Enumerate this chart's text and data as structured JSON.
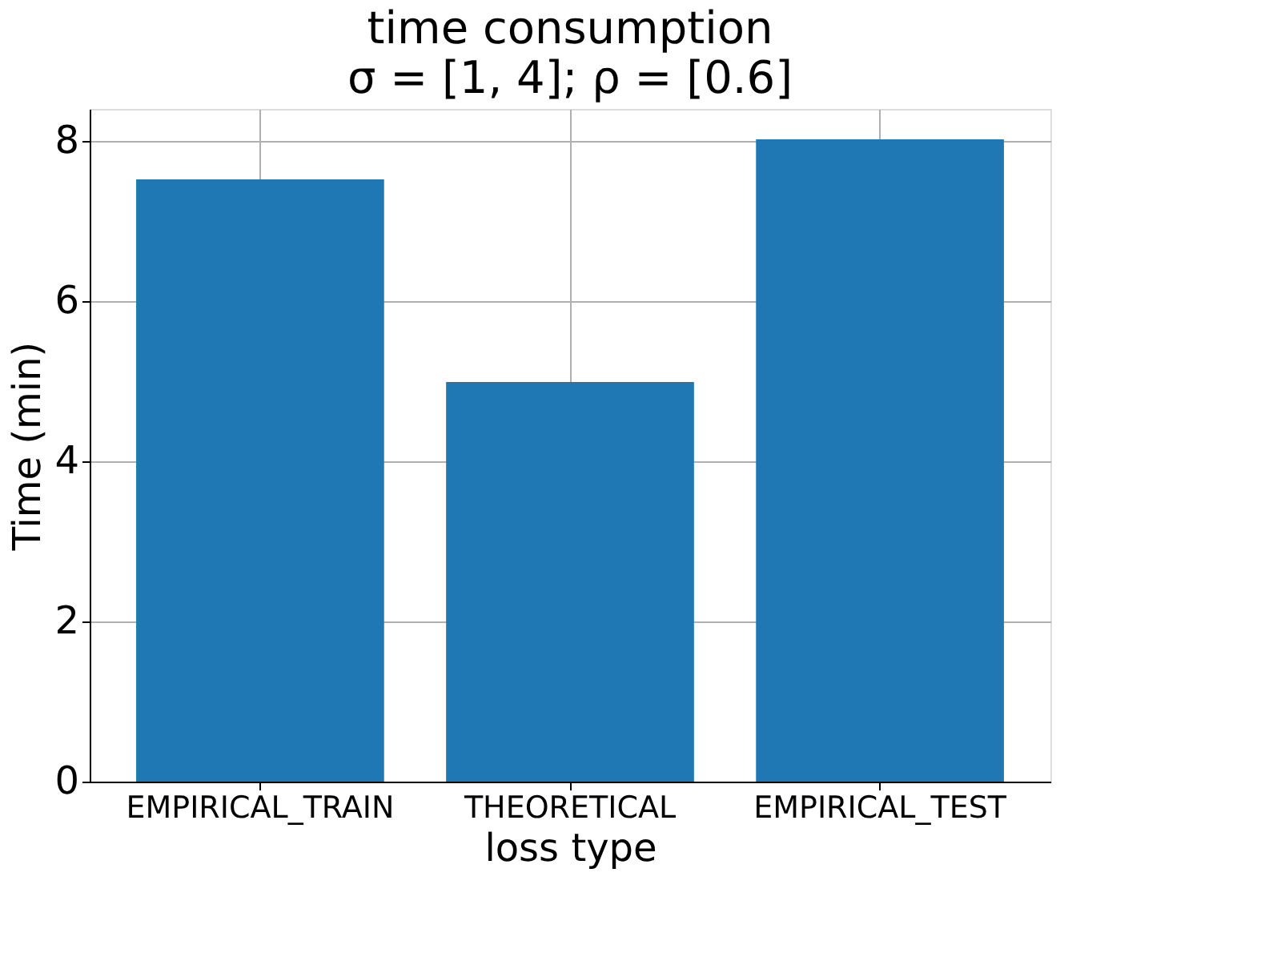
{
  "chart_data": {
    "type": "bar",
    "title": "time consumption",
    "subtitle": "σ = [1, 4];  ρ = [0.6]",
    "xlabel": "loss type",
    "ylabel": "Time (min)",
    "categories": [
      "EMPIRICAL_TRAIN",
      "THEORETICAL",
      "EMPIRICAL_TEST"
    ],
    "values": [
      7.52,
      4.99,
      8.02
    ],
    "color": "#1f77b4",
    "ylim": [
      0,
      8.4
    ],
    "yticks": [
      0,
      2,
      4,
      6,
      8
    ],
    "grid": true
  }
}
